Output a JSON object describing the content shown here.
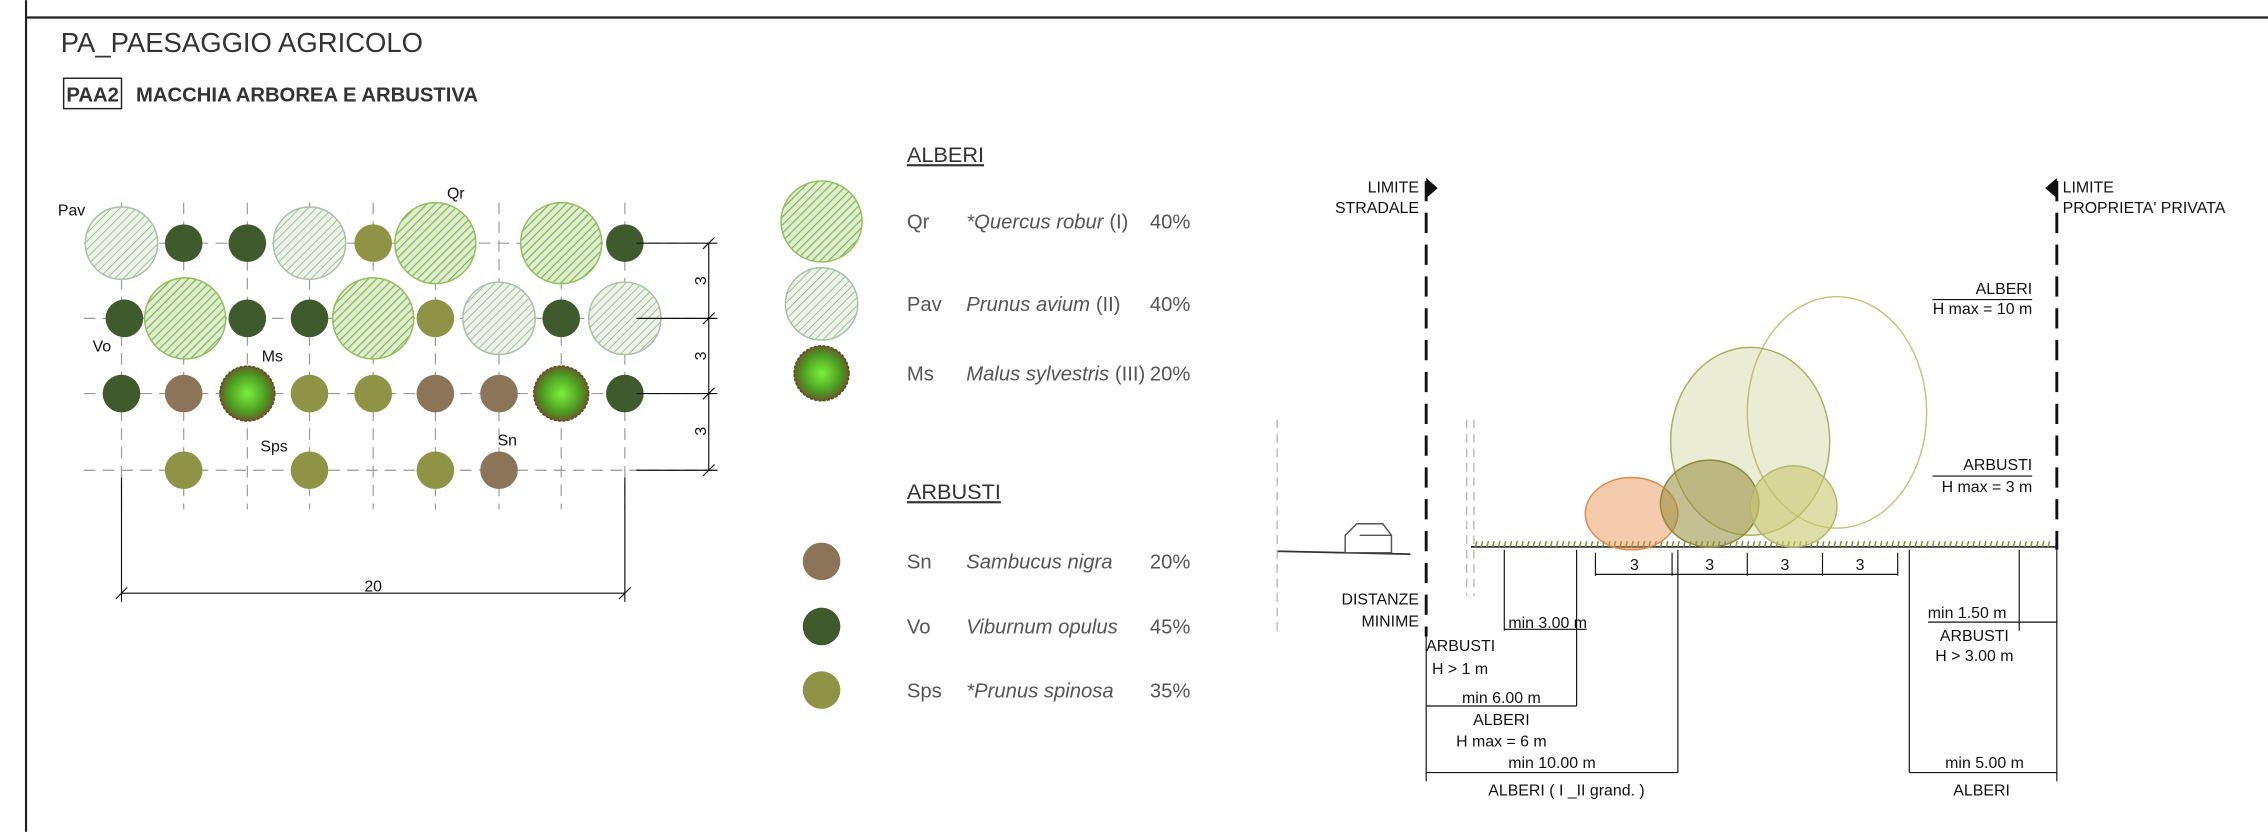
{
  "header": {
    "title": "PA_PAESAGGIO AGRICOLO",
    "code": "PAA2",
    "subtitle": "MACCHIA ARBOREA E ARBUSTIVA"
  },
  "plan": {
    "labels": [
      "Pav",
      "Qr",
      "Vo",
      "Ms",
      "Sps",
      "Sn"
    ],
    "spacing": [
      "3",
      "3",
      "3"
    ],
    "width": "20"
  },
  "legend": {
    "trees_title": "ALBERI",
    "trees": [
      {
        "code": "Qr",
        "name": "*Quercus robur",
        "size": "(I)",
        "share": "40%"
      },
      {
        "code": "Pav",
        "name": "Prunus avium",
        "size": "(II)",
        "share": "40%"
      },
      {
        "code": "Ms",
        "name": "Malus sylvestris",
        "size": "(III)",
        "share": "20%"
      }
    ],
    "shrubs_title": "ARBUSTI",
    "shrubs": [
      {
        "code": "Sn",
        "name": "Sambucus nigra",
        "share": "20%"
      },
      {
        "code": "Vo",
        "name": "Viburnum opulus",
        "share": "45%"
      },
      {
        "code": "Sps",
        "name": "*Prunus spinosa",
        "share": "35%"
      }
    ]
  },
  "section": {
    "limit_left": [
      "LIMITE",
      "STRADALE"
    ],
    "limit_right": [
      "LIMITE",
      "PROPRIETA' PRIVATA"
    ],
    "trees_height": [
      "ALBERI",
      "H max = 10 m"
    ],
    "shrubs_height": [
      "ARBUSTI",
      "H max = 3 m"
    ],
    "rows": [
      "3",
      "3",
      "3",
      "3"
    ],
    "distances": [
      "DISTANZE",
      "MINIME"
    ],
    "left": [
      "min 3.00 m",
      "ARBUSTI",
      "H  > 1 m",
      "min 6.00 m",
      "ALBERI",
      "H max = 6 m",
      "min 10.00 m",
      "ALBERI ( I _II grand. )"
    ],
    "right": [
      "min 1.50 m",
      "ARBUSTI",
      "H  > 3.00 m",
      "min 5.00 m",
      "ALBERI"
    ]
  }
}
